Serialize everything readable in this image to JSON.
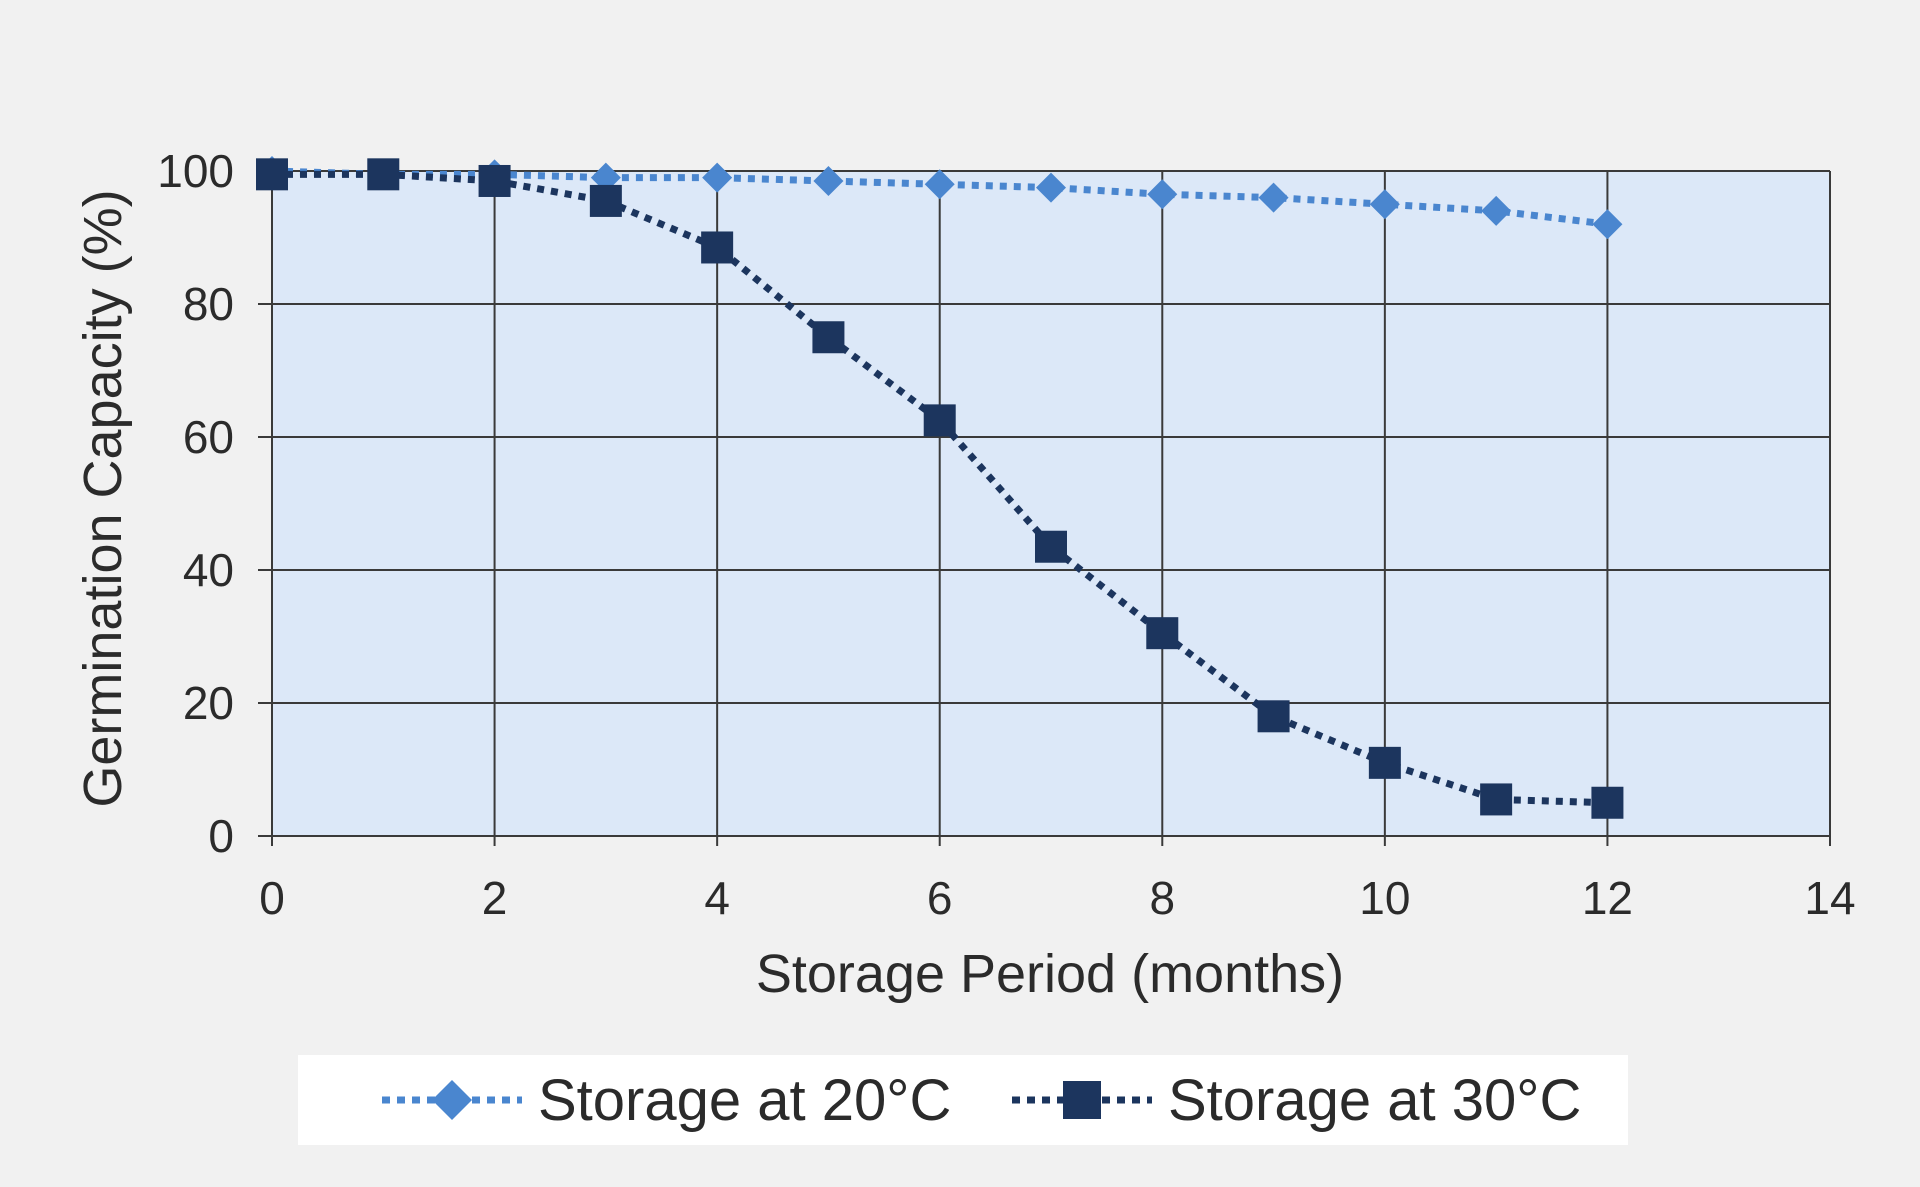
{
  "chart_data": {
    "type": "line",
    "title": "",
    "xlabel": "Storage Period (months)",
    "ylabel": "Germination Capacity (%)",
    "xlim": [
      0,
      14
    ],
    "ylim": [
      0,
      100
    ],
    "xticks": [
      0,
      2,
      4,
      6,
      8,
      10,
      12,
      14
    ],
    "yticks": [
      0,
      20,
      40,
      60,
      80,
      100
    ],
    "grid": true,
    "legend_position": "bottom",
    "plot_background": "#dce8f8",
    "page_background": "#f1f1f1",
    "series": [
      {
        "name": "Storage at 20°C",
        "color": "#4a86cf",
        "marker": "diamond",
        "line_style": "dotted",
        "x": [
          0,
          1,
          2,
          3,
          4,
          5,
          6,
          7,
          8,
          9,
          10,
          11,
          12
        ],
        "y": [
          100,
          99.5,
          99.5,
          99,
          99,
          98.5,
          98,
          97.5,
          96.5,
          96,
          95,
          94,
          92
        ]
      },
      {
        "name": "Storage at 30°C",
        "color": "#1c355e",
        "marker": "square",
        "line_style": "dotted",
        "x": [
          0,
          1,
          2,
          3,
          4,
          5,
          6,
          7,
          8,
          9,
          10,
          11,
          12
        ],
        "y": [
          99.5,
          99.5,
          98.5,
          95.5,
          88.5,
          75,
          62.5,
          43.5,
          30.5,
          18,
          11,
          5.5,
          5
        ]
      }
    ]
  }
}
